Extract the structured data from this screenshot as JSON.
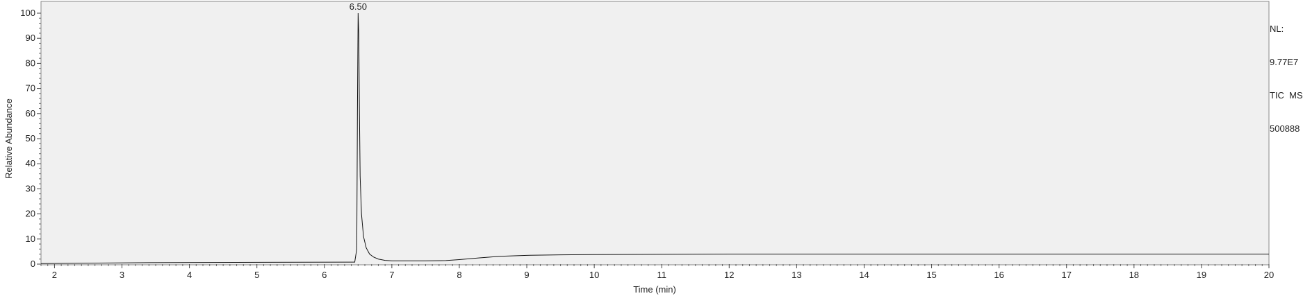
{
  "chart_data": {
    "type": "line",
    "xlabel": "Time (min)",
    "ylabel": "Relative Abundance",
    "xlim": [
      1.8,
      20
    ],
    "ylim": [
      0,
      100
    ],
    "x_ticks": [
      2,
      3,
      4,
      5,
      6,
      7,
      8,
      9,
      10,
      11,
      12,
      13,
      14,
      15,
      16,
      17,
      18,
      19,
      20
    ],
    "y_ticks": [
      0,
      10,
      20,
      30,
      40,
      50,
      60,
      70,
      80,
      90,
      100
    ],
    "grid": false,
    "series": [
      {
        "x": [
          1.8,
          3.4,
          6.45,
          6.48,
          6.49,
          6.5,
          6.51,
          6.52,
          6.53,
          6.55,
          6.58,
          6.62,
          6.67,
          6.73,
          6.8,
          6.9,
          7.0,
          7.5,
          7.8,
          8.0,
          8.3,
          8.6,
          9.0,
          9.5,
          10,
          11,
          12,
          13,
          14,
          15,
          16,
          17,
          18,
          19,
          20
        ],
        "y": [
          0.2,
          0.6,
          0.8,
          6,
          60,
          100,
          92,
          60,
          35,
          20,
          11,
          6.5,
          4,
          2.8,
          2.0,
          1.5,
          1.3,
          1.3,
          1.4,
          1.8,
          2.5,
          3.1,
          3.5,
          3.7,
          3.8,
          3.9,
          4.0,
          4.0,
          4.0,
          4.0,
          4.0,
          4.0,
          4.0,
          4.0,
          4.0
        ]
      }
    ],
    "annotations": [
      {
        "text": "6.50",
        "x": 6.5,
        "y": 100
      }
    ]
  },
  "info_panel": {
    "lines": [
      "NL:",
      "9.77E7",
      "TIC  MS",
      "500888"
    ]
  }
}
